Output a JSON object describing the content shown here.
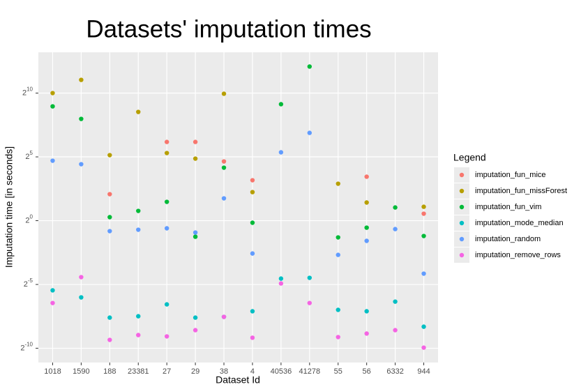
{
  "chart_data": {
    "type": "scatter",
    "title": "Datasets' imputation times",
    "x_label": "Dataset Id",
    "y_label": "Imputation time [in seconds]",
    "legend_title": "Legend",
    "legend_position": "right",
    "grid": true,
    "log_base": 2,
    "categories": [
      "1018",
      "1590",
      "188",
      "23381",
      "27",
      "29",
      "38",
      "4",
      "40536",
      "41278",
      "55",
      "56",
      "6332",
      "944"
    ],
    "ylim": [
      0.00045,
      9400
    ],
    "yticks": [
      {
        "value": 0.0009765625,
        "label": "2",
        "superscript": "-10"
      },
      {
        "value": 0.03125,
        "label": "2",
        "superscript": "-5"
      },
      {
        "value": 1,
        "label": "2",
        "superscript": "0"
      },
      {
        "value": 32,
        "label": "2",
        "superscript": "5"
      },
      {
        "value": 1024,
        "label": "2",
        "superscript": "10"
      }
    ],
    "series": [
      {
        "name": "imputation_fun_mice",
        "color": "#F8766D",
        "values": [
          null,
          null,
          4.22,
          null,
          72.1,
          72.1,
          25.0,
          9.0,
          null,
          null,
          null,
          10.9,
          null,
          1.46
        ]
      },
      {
        "name": "imputation_fun_missForest",
        "color": "#B79F00",
        "values": [
          1024,
          2100,
          35.2,
          368,
          39.4,
          29.1,
          988,
          4.72,
          null,
          null,
          7.45,
          2.68,
          null,
          2.13
        ]
      },
      {
        "name": "imputation_fun_vim",
        "color": "#00BA38",
        "values": [
          498,
          252,
          1.21,
          1.7,
          2.78,
          0.418,
          17.8,
          0.894,
          560,
          4330,
          0.403,
          0.684,
          2.05,
          0.435
        ]
      },
      {
        "name": "imputation_mode_median",
        "color": "#00BFC4",
        "values": [
          0.0227,
          0.0155,
          0.00516,
          0.00556,
          0.0106,
          0.00516,
          0.00537,
          0.00729,
          0.043,
          0.0448,
          0.00786,
          0.00729,
          0.0123,
          0.00315
        ]
      },
      {
        "name": "imputation_random",
        "color": "#619CFF",
        "values": [
          26.0,
          21.5,
          0.567,
          0.611,
          0.66,
          0.525,
          3.36,
          0.168,
          41.0,
          118,
          0.156,
          0.334,
          0.633,
          0.0562
        ]
      },
      {
        "name": "imputation_remove_rows",
        "color": "#F564E3",
        "values": [
          0.0114,
          0.0465,
          0.00154,
          0.002,
          0.00186,
          0.00261,
          0.00537,
          0.00173,
          0.033,
          0.0114,
          0.00179,
          0.00217,
          0.00261,
          0.00101
        ]
      }
    ]
  }
}
